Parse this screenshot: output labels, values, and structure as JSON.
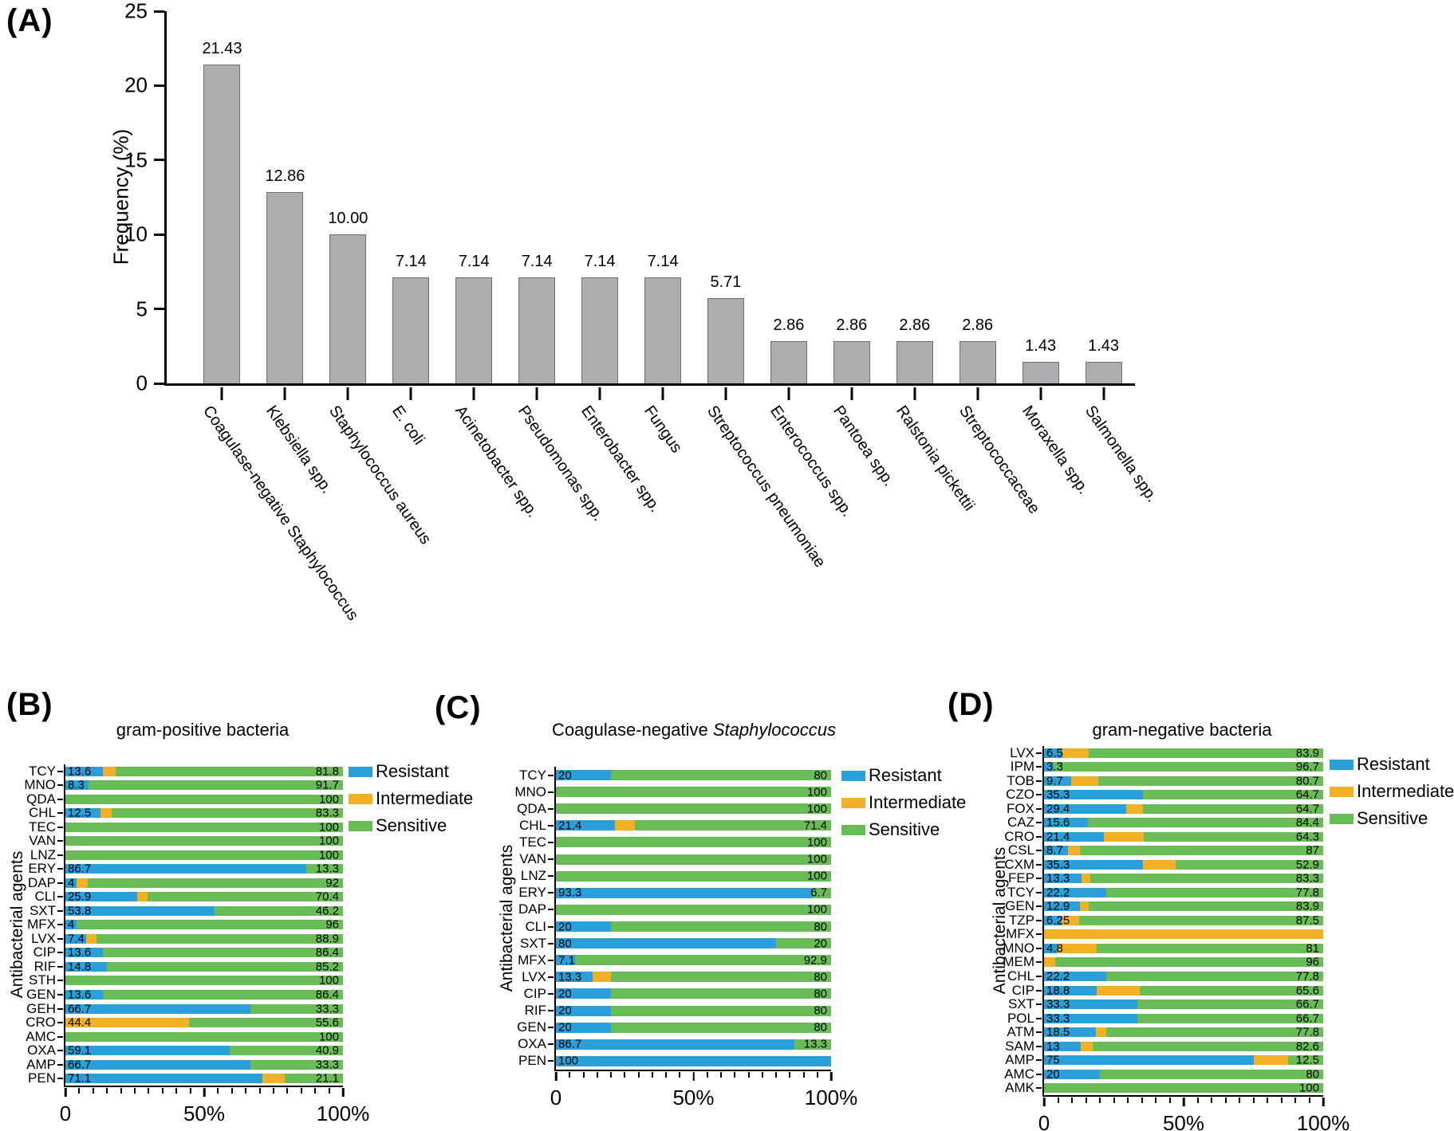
{
  "colors": {
    "resistant": "#2B9FD9",
    "intermediate": "#F2B024",
    "sensitive": "#6ABD56",
    "gray_bar_fill": "#ACADAF",
    "gray_bar_border": "#6E6F72",
    "axis": "#000000"
  },
  "legend": {
    "items": [
      {
        "key": "resistant",
        "label": "Resistant"
      },
      {
        "key": "intermediate",
        "label": "Intermediate"
      },
      {
        "key": "sensitive",
        "label": "Sensitive"
      }
    ]
  },
  "panel_a": {
    "tag": "(A)",
    "ylabel": "Frequency (%)"
  },
  "panel_b": {
    "tag": "(B)",
    "title": "gram-positive bacteria",
    "ylabel": "Antibacterial agents"
  },
  "panel_c": {
    "tag": "(C)",
    "title_prefix": "Coagulase-negative ",
    "title_italic": "Staphylococcus",
    "ylabel": "Antibacterial agents"
  },
  "panel_d": {
    "tag": "(D)",
    "title": "gram-negative bacteria",
    "ylabel": "Antibacterial agents"
  },
  "chart_data": [
    {
      "id": "A",
      "type": "bar",
      "title": "",
      "ylabel": "Frequency (%)",
      "ylim": [
        0,
        25
      ],
      "yticks": [
        0,
        5,
        10,
        15,
        20,
        25
      ],
      "categories": [
        "Coagulase-negative Staphylococcus",
        "Klebsiella spp.",
        "Staphylococcus aureus",
        "E. coli",
        "Acinetobacter spp.",
        "Pseudomonas spp.",
        "Enterobacter spp.",
        "Fungus",
        "Streptococcus pneumoniae",
        "Enterococcus spp.",
        "Pantoea spp.",
        "Ralstonia pickettii",
        "Streptococcaceae",
        "Moraxella spp.",
        "Salmonella spp."
      ],
      "values": [
        21.43,
        12.86,
        10.0,
        7.14,
        7.14,
        7.14,
        7.14,
        7.14,
        5.71,
        2.86,
        2.86,
        2.86,
        2.86,
        1.43,
        1.43
      ],
      "value_labels": [
        "21.43",
        "12.86",
        "10.00",
        "7.14",
        "7.14",
        "7.14",
        "7.14",
        "7.14",
        "5.71",
        "2.86",
        "2.86",
        "2.86",
        "2.86",
        "1.43",
        "1.43"
      ]
    },
    {
      "id": "B",
      "type": "stacked_bar_h",
      "title": "gram-positive bacteria",
      "ylabel": "Antibacterial agents",
      "xlim": [
        0,
        100
      ],
      "xticks": [
        "0",
        "50%",
        "100%"
      ],
      "series_names": [
        "Resistant",
        "Intermediate",
        "Sensitive"
      ],
      "rows": [
        {
          "agent": "TCY",
          "resistant": 13.6,
          "intermediate": 4.6,
          "sensitive": 81.8,
          "left_label": "13.6",
          "right_label": "81.8"
        },
        {
          "agent": "MNO",
          "resistant": 8.3,
          "intermediate": 0,
          "sensitive": 91.7,
          "left_label": "8.3",
          "right_label": "91.7"
        },
        {
          "agent": "QDA",
          "resistant": 0,
          "intermediate": 0,
          "sensitive": 100,
          "left_label": "",
          "right_label": "100"
        },
        {
          "agent": "CHL",
          "resistant": 12.5,
          "intermediate": 4.2,
          "sensitive": 83.3,
          "left_label": "12.5",
          "right_label": "83.3"
        },
        {
          "agent": "TEC",
          "resistant": 0,
          "intermediate": 0,
          "sensitive": 100,
          "left_label": "",
          "right_label": "100"
        },
        {
          "agent": "VAN",
          "resistant": 0,
          "intermediate": 0,
          "sensitive": 100,
          "left_label": "",
          "right_label": "100"
        },
        {
          "agent": "LNZ",
          "resistant": 0,
          "intermediate": 0,
          "sensitive": 100,
          "left_label": "",
          "right_label": "100"
        },
        {
          "agent": "ERY",
          "resistant": 86.7,
          "intermediate": 0,
          "sensitive": 13.3,
          "left_label": "86.7",
          "right_label": "13.3"
        },
        {
          "agent": "DAP",
          "resistant": 4,
          "intermediate": 4,
          "sensitive": 92,
          "left_label": "4",
          "right_label": "92"
        },
        {
          "agent": "CLI",
          "resistant": 25.9,
          "intermediate": 3.7,
          "sensitive": 70.4,
          "left_label": "25.9",
          "right_label": "70.4"
        },
        {
          "agent": "SXT",
          "resistant": 53.8,
          "intermediate": 0,
          "sensitive": 46.2,
          "left_label": "53.8",
          "right_label": "46.2"
        },
        {
          "agent": "MFX",
          "resistant": 4,
          "intermediate": 0,
          "sensitive": 96,
          "left_label": "4",
          "right_label": "96"
        },
        {
          "agent": "LVX",
          "resistant": 7.4,
          "intermediate": 3.7,
          "sensitive": 88.9,
          "left_label": "7.4",
          "right_label": "88.9"
        },
        {
          "agent": "CIP",
          "resistant": 13.6,
          "intermediate": 0,
          "sensitive": 86.4,
          "left_label": "13.6",
          "right_label": "86.4"
        },
        {
          "agent": "RIF",
          "resistant": 14.8,
          "intermediate": 0,
          "sensitive": 85.2,
          "left_label": "14.8",
          "right_label": "85.2"
        },
        {
          "agent": "STH",
          "resistant": 0,
          "intermediate": 0,
          "sensitive": 100,
          "left_label": "",
          "right_label": "100"
        },
        {
          "agent": "GEN",
          "resistant": 13.6,
          "intermediate": 0,
          "sensitive": 86.4,
          "left_label": "13.6",
          "right_label": "86.4"
        },
        {
          "agent": "GEH",
          "resistant": 66.7,
          "intermediate": 0,
          "sensitive": 33.3,
          "left_label": "66.7",
          "right_label": "33.3"
        },
        {
          "agent": "CRO",
          "resistant": 0,
          "intermediate": 44.4,
          "sensitive": 55.6,
          "left_label": "44.4",
          "right_label": "55.6"
        },
        {
          "agent": "AMC",
          "resistant": 0,
          "intermediate": 0,
          "sensitive": 100,
          "left_label": "",
          "right_label": "100"
        },
        {
          "agent": "OXA",
          "resistant": 59.1,
          "intermediate": 0,
          "sensitive": 40.9,
          "left_label": "59.1",
          "right_label": "40.9"
        },
        {
          "agent": "AMP",
          "resistant": 66.7,
          "intermediate": 0,
          "sensitive": 33.3,
          "left_label": "66.7",
          "right_label": "33.3"
        },
        {
          "agent": "PEN",
          "resistant": 71.1,
          "intermediate": 7.8,
          "sensitive": 21.1,
          "left_label": "71.1",
          "right_label": "21.1"
        }
      ]
    },
    {
      "id": "C",
      "type": "stacked_bar_h",
      "title": "Coagulase-negative Staphylococcus",
      "ylabel": "Antibacterial agents",
      "xlim": [
        0,
        100
      ],
      "xticks": [
        "0",
        "50%",
        "100%"
      ],
      "series_names": [
        "Resistant",
        "Intermediate",
        "Sensitive"
      ],
      "rows": [
        {
          "agent": "TCY",
          "resistant": 20,
          "intermediate": 0,
          "sensitive": 80,
          "left_label": "20",
          "right_label": "80"
        },
        {
          "agent": "MNO",
          "resistant": 0,
          "intermediate": 0,
          "sensitive": 100,
          "left_label": "",
          "right_label": "100"
        },
        {
          "agent": "QDA",
          "resistant": 0,
          "intermediate": 0,
          "sensitive": 100,
          "left_label": "",
          "right_label": "100"
        },
        {
          "agent": "CHL",
          "resistant": 21.4,
          "intermediate": 7.2,
          "sensitive": 71.4,
          "left_label": "21.4",
          "right_label": "71.4"
        },
        {
          "agent": "TEC",
          "resistant": 0,
          "intermediate": 0,
          "sensitive": 100,
          "left_label": "",
          "right_label": "100"
        },
        {
          "agent": "VAN",
          "resistant": 0,
          "intermediate": 0,
          "sensitive": 100,
          "left_label": "",
          "right_label": "100"
        },
        {
          "agent": "LNZ",
          "resistant": 0,
          "intermediate": 0,
          "sensitive": 100,
          "left_label": "",
          "right_label": "100"
        },
        {
          "agent": "ERY",
          "resistant": 93.3,
          "intermediate": 0,
          "sensitive": 6.7,
          "left_label": "93.3",
          "right_label": "6.7"
        },
        {
          "agent": "DAP",
          "resistant": 0,
          "intermediate": 0,
          "sensitive": 100,
          "left_label": "",
          "right_label": "100"
        },
        {
          "agent": "CLI",
          "resistant": 20,
          "intermediate": 0,
          "sensitive": 80,
          "left_label": "20",
          "right_label": "80"
        },
        {
          "agent": "SXT",
          "resistant": 80,
          "intermediate": 0,
          "sensitive": 20,
          "left_label": "80",
          "right_label": "20"
        },
        {
          "agent": "MFX",
          "resistant": 7.1,
          "intermediate": 0,
          "sensitive": 92.9,
          "left_label": "7.1",
          "right_label": "92.9"
        },
        {
          "agent": "LVX",
          "resistant": 13.3,
          "intermediate": 6.7,
          "sensitive": 80,
          "left_label": "13.3",
          "right_label": "80"
        },
        {
          "agent": "CIP",
          "resistant": 20,
          "intermediate": 0,
          "sensitive": 80,
          "left_label": "20",
          "right_label": "80"
        },
        {
          "agent": "RIF",
          "resistant": 20,
          "intermediate": 0,
          "sensitive": 80,
          "left_label": "20",
          "right_label": "80"
        },
        {
          "agent": "GEN",
          "resistant": 20,
          "intermediate": 0,
          "sensitive": 80,
          "left_label": "20",
          "right_label": "80"
        },
        {
          "agent": "OXA",
          "resistant": 86.7,
          "intermediate": 0,
          "sensitive": 13.3,
          "left_label": "86.7",
          "right_label": "13.3"
        },
        {
          "agent": "PEN",
          "resistant": 100,
          "intermediate": 0,
          "sensitive": 0,
          "left_label": "100",
          "right_label": ""
        }
      ]
    },
    {
      "id": "D",
      "type": "stacked_bar_h",
      "title": "gram-negative bacteria",
      "ylabel": "Antibacterial agents",
      "xlim": [
        0,
        100
      ],
      "xticks": [
        "0",
        "50%",
        "100%"
      ],
      "series_names": [
        "Resistant",
        "Intermediate",
        "Sensitive"
      ],
      "rows": [
        {
          "agent": "LVX",
          "resistant": 6.5,
          "intermediate": 9.6,
          "sensitive": 83.9,
          "left_label": "6.5",
          "right_label": "83.9"
        },
        {
          "agent": "IPM",
          "resistant": 3.3,
          "intermediate": 0,
          "sensitive": 96.7,
          "left_label": "3.3",
          "right_label": "96.7"
        },
        {
          "agent": "TOB",
          "resistant": 9.7,
          "intermediate": 9.6,
          "sensitive": 80.7,
          "left_label": "9.7",
          "right_label": "80.7"
        },
        {
          "agent": "CZO",
          "resistant": 35.3,
          "intermediate": 0,
          "sensitive": 64.7,
          "left_label": "35.3",
          "right_label": "64.7"
        },
        {
          "agent": "FOX",
          "resistant": 29.4,
          "intermediate": 5.9,
          "sensitive": 64.7,
          "left_label": "29.4",
          "right_label": "64.7"
        },
        {
          "agent": "CAZ",
          "resistant": 15.6,
          "intermediate": 0,
          "sensitive": 84.4,
          "left_label": "15.6",
          "right_label": "84.4"
        },
        {
          "agent": "CRO",
          "resistant": 21.4,
          "intermediate": 14.3,
          "sensitive": 64.3,
          "left_label": "21.4",
          "right_label": "64.3"
        },
        {
          "agent": "CSL",
          "resistant": 8.7,
          "intermediate": 4.3,
          "sensitive": 87,
          "left_label": "8.7",
          "right_label": "87"
        },
        {
          "agent": "CXM",
          "resistant": 35.3,
          "intermediate": 11.8,
          "sensitive": 52.9,
          "left_label": "35.3",
          "right_label": "52.9"
        },
        {
          "agent": "FEP",
          "resistant": 13.3,
          "intermediate": 3.4,
          "sensitive": 83.3,
          "left_label": "13.3",
          "right_label": "83.3"
        },
        {
          "agent": "TCY",
          "resistant": 22.2,
          "intermediate": 0,
          "sensitive": 77.8,
          "left_label": "22.2",
          "right_label": "77.8"
        },
        {
          "agent": "GEN",
          "resistant": 12.9,
          "intermediate": 3.2,
          "sensitive": 83.9,
          "left_label": "12.9",
          "right_label": "83.9"
        },
        {
          "agent": "TZP",
          "resistant": 6.25,
          "intermediate": 6.25,
          "sensitive": 87.5,
          "left_label": "6.25",
          "right_label": "87.5"
        },
        {
          "agent": "MFX",
          "resistant": 0,
          "intermediate": 100,
          "sensitive": 0,
          "left_label": "",
          "right_label": ""
        },
        {
          "agent": "MNO",
          "resistant": 4.8,
          "intermediate": 14.2,
          "sensitive": 81,
          "left_label": "4.8",
          "right_label": "81"
        },
        {
          "agent": "MEM",
          "resistant": 0,
          "intermediate": 4,
          "sensitive": 96,
          "left_label": "",
          "right_label": "96"
        },
        {
          "agent": "CHL",
          "resistant": 22.2,
          "intermediate": 0,
          "sensitive": 77.8,
          "left_label": "22.2",
          "right_label": "77.8"
        },
        {
          "agent": "CIP",
          "resistant": 18.8,
          "intermediate": 15.6,
          "sensitive": 65.6,
          "left_label": "18.8",
          "right_label": "65.6"
        },
        {
          "agent": "SXT",
          "resistant": 33.3,
          "intermediate": 0,
          "sensitive": 66.7,
          "left_label": "33.3",
          "right_label": "66.7"
        },
        {
          "agent": "POL",
          "resistant": 33.3,
          "intermediate": 0,
          "sensitive": 66.7,
          "left_label": "33.3",
          "right_label": "66.7"
        },
        {
          "agent": "ATM",
          "resistant": 18.5,
          "intermediate": 3.7,
          "sensitive": 77.8,
          "left_label": "18.5",
          "right_label": "77.8"
        },
        {
          "agent": "SAM",
          "resistant": 13,
          "intermediate": 4.4,
          "sensitive": 82.6,
          "left_label": "13",
          "right_label": "82.6"
        },
        {
          "agent": "AMP",
          "resistant": 75,
          "intermediate": 12.5,
          "sensitive": 12.5,
          "left_label": "75",
          "right_label": "12.5"
        },
        {
          "agent": "AMC",
          "resistant": 20,
          "intermediate": 0,
          "sensitive": 80,
          "left_label": "20",
          "right_label": "80"
        },
        {
          "agent": "AMK",
          "resistant": 0,
          "intermediate": 0,
          "sensitive": 100,
          "left_label": "",
          "right_label": "100"
        }
      ]
    }
  ]
}
